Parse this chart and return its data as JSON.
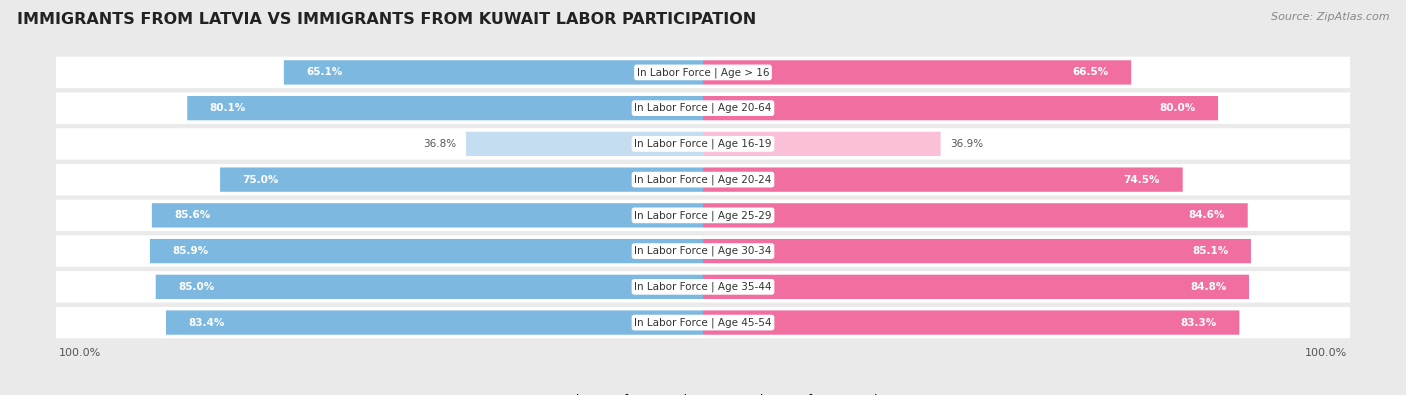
{
  "title": "IMMIGRANTS FROM LATVIA VS IMMIGRANTS FROM KUWAIT LABOR PARTICIPATION",
  "source": "Source: ZipAtlas.com",
  "categories": [
    "In Labor Force | Age > 16",
    "In Labor Force | Age 20-64",
    "In Labor Force | Age 16-19",
    "In Labor Force | Age 20-24",
    "In Labor Force | Age 25-29",
    "In Labor Force | Age 30-34",
    "In Labor Force | Age 35-44",
    "In Labor Force | Age 45-54"
  ],
  "latvia_values": [
    65.1,
    80.1,
    36.8,
    75.0,
    85.6,
    85.9,
    85.0,
    83.4
  ],
  "kuwait_values": [
    66.5,
    80.0,
    36.9,
    74.5,
    84.6,
    85.1,
    84.8,
    83.3
  ],
  "latvia_color": "#7CB8E0",
  "latvia_color_light": "#C5DDF0",
  "kuwait_color": "#F06EA0",
  "kuwait_color_light": "#F9C0D8",
  "background_color": "#EAEAEA",
  "row_bg_color": "#F5F5F5",
  "title_fontsize": 11.5,
  "label_fontsize": 7.5,
  "value_fontsize": 7.5,
  "legend_fontsize": 9,
  "max_value": 100.0
}
